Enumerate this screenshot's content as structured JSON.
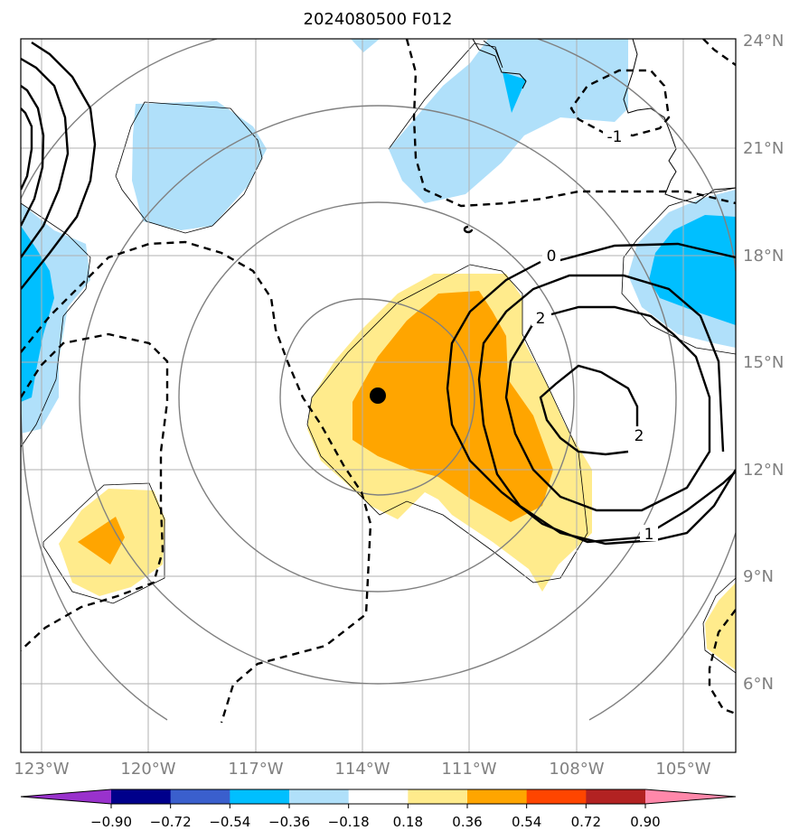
{
  "chart_data": {
    "type": "contour",
    "title": "2024080500 F012",
    "extent": {
      "lon_min": -123.5,
      "lon_max": -103.5,
      "lat_min": 4,
      "lat_max": 24
    },
    "xticks": [
      {
        "lon": -123,
        "label": "123°W"
      },
      {
        "lon": -120,
        "label": "120°W"
      },
      {
        "lon": -117,
        "label": "117°W"
      },
      {
        "lon": -114,
        "label": "114°W"
      },
      {
        "lon": -111,
        "label": "111°W"
      },
      {
        "lon": -108,
        "label": "108°W"
      },
      {
        "lon": -105,
        "label": "105°W"
      }
    ],
    "yticks": [
      {
        "lat": 24,
        "label": "24°N"
      },
      {
        "lat": 21,
        "label": "21°N"
      },
      {
        "lat": 18,
        "label": "18°N"
      },
      {
        "lat": 15,
        "label": "15°N"
      },
      {
        "lat": 12,
        "label": "12°N"
      },
      {
        "lat": 9,
        "label": "9°N"
      },
      {
        "lat": 6,
        "label": "6°N"
      }
    ],
    "grid": true,
    "storm_center": {
      "lon": -113.6,
      "lat": 14.1
    },
    "colorbar": {
      "orientation": "horizontal",
      "extend": "both",
      "levels": [
        -0.9,
        -0.72,
        -0.54,
        -0.36,
        -0.18,
        0.18,
        0.36,
        0.54,
        0.72,
        0.9
      ],
      "tick_labels": [
        "−0.90",
        "−0.72",
        "−0.54",
        "−0.36",
        "−0.18",
        "0.18",
        "0.36",
        "0.54",
        "0.72",
        "0.90"
      ],
      "colors": [
        "#9932cc",
        "#00008b",
        "#3a5fcd",
        "#00bfff",
        "#b0e0fa",
        "#ffffff",
        "#ffeb8c",
        "#ffa500",
        "#ff4500",
        "#b22222",
        "#ff88aa"
      ]
    },
    "contour_labels": [
      "0",
      "2",
      "2",
      "1",
      "-1"
    ],
    "colors": {
      "contour": "#000000",
      "range_rings": "#808080",
      "gridlines": "#b0b0b0",
      "axis_text": "#808080"
    }
  }
}
